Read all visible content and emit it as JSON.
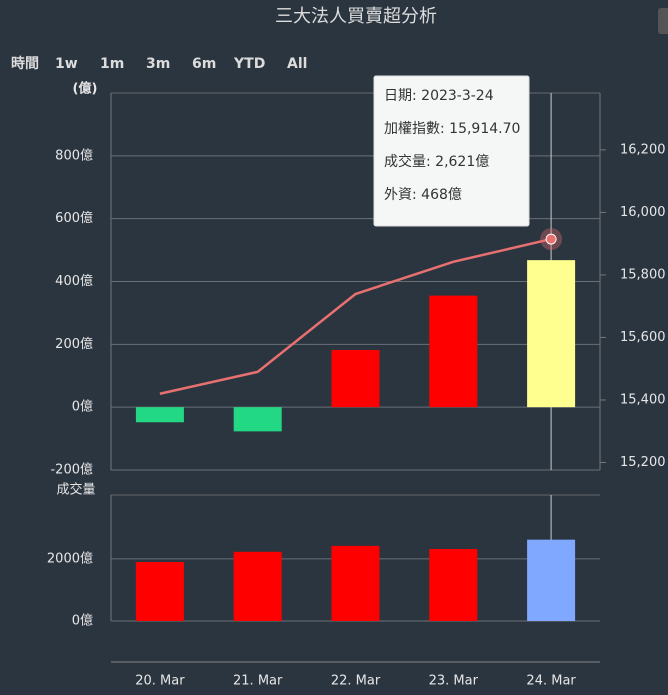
{
  "range_selector": {
    "label": "時間",
    "buttons": [
      "1w",
      "1m",
      "3m",
      "6m",
      "YTD",
      "All"
    ]
  },
  "tooltip": [
    "日期: 2023-3-24",
    "加權指數: 15,914.70",
    "成交量: 2,621億",
    "外資: 468億"
  ],
  "chart_data": [
    {
      "type": "bar",
      "title": "三大法人買賣超分析",
      "ylabel": "(億)",
      "grid": true,
      "ylim": [
        -200,
        1000
      ],
      "yticks": [
        {
          "value": -200,
          "label": "-200億"
        },
        {
          "value": 0,
          "label": "0億"
        },
        {
          "value": 200,
          "label": "200億"
        },
        {
          "value": 400,
          "label": "400億"
        },
        {
          "value": 600,
          "label": "600億"
        },
        {
          "value": 800,
          "label": "800億"
        }
      ],
      "y2lim": [
        15176,
        16382
      ],
      "y2ticks": [
        {
          "value": 15200,
          "label": "15,200"
        },
        {
          "value": 15400,
          "label": "15,400"
        },
        {
          "value": 15600,
          "label": "15,600"
        },
        {
          "value": 15800,
          "label": "15,800"
        },
        {
          "value": 16000,
          "label": "16,000"
        },
        {
          "value": 16200,
          "label": "16,200"
        }
      ],
      "series": [
        {
          "type": "bar",
          "colors": [
            "#22d884",
            "#22d884",
            "#ff0000",
            "#ff0000",
            "#ffff8f"
          ],
          "values": [
            -48,
            -77,
            182,
            355,
            468
          ]
        },
        {
          "type": "line",
          "axis": "y2",
          "color": "#e87070",
          "values": [
            15420,
            15490,
            15739,
            15842,
            15914.7
          ]
        }
      ]
    },
    {
      "type": "bar",
      "ylabel": "成交量",
      "grid": true,
      "categories": [
        "20. Mar",
        "21. Mar",
        "22. Mar",
        "23. Mar",
        "24. Mar"
      ],
      "ylim": [
        0,
        4060
      ],
      "yticks": [
        {
          "value": 0,
          "label": "0億"
        },
        {
          "value": 2000,
          "label": "2000億"
        }
      ],
      "series": [
        {
          "type": "bar",
          "colors": [
            "#ff0000",
            "#ff0000",
            "#ff0000",
            "#ff0000",
            "#80a8ff"
          ],
          "values": [
            1900,
            2230,
            2420,
            2320,
            2621
          ]
        }
      ]
    }
  ]
}
